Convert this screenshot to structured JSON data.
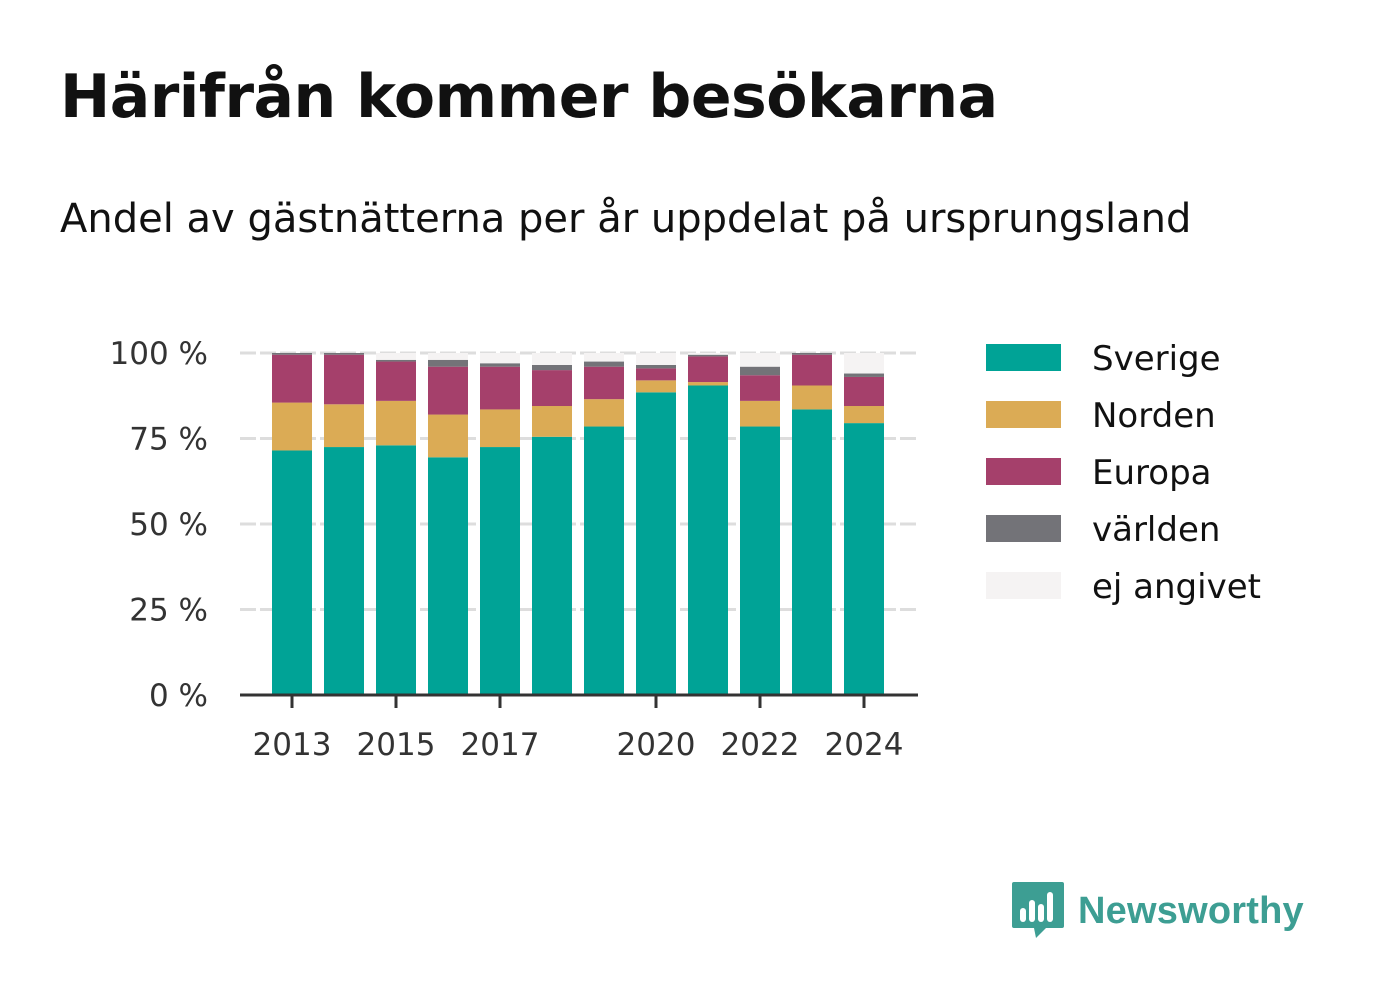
{
  "title": "Härifrån kommer besökarna",
  "subtitle": "Andel av gästnätterna per år uppdelat på ursprungsland",
  "brand": {
    "name": "Newsworthy",
    "logo_icon": "bar-chart-speech-bubble-icon",
    "color": "#3d9e93"
  },
  "chart_data": {
    "type": "bar",
    "stacked": true,
    "categories": [
      "2013",
      "2014",
      "2015",
      "2016",
      "2017",
      "2018",
      "2019",
      "2020",
      "2021",
      "2022",
      "2023",
      "2024"
    ],
    "x_tick_labels": [
      "2013",
      "",
      "2015",
      "",
      "2017",
      "",
      "",
      "2020",
      "",
      "2022",
      "",
      "2024"
    ],
    "y_ticks": [
      0,
      25,
      50,
      75,
      100
    ],
    "y_tick_labels": [
      "0 %",
      "25 %",
      "50 %",
      "75 %",
      "100 %"
    ],
    "ylim": [
      0,
      100
    ],
    "grid": true,
    "legend_position": "right",
    "series": [
      {
        "name": "Sverige",
        "color": "#00a396",
        "values": [
          71.5,
          72.5,
          73.0,
          69.5,
          72.5,
          75.5,
          78.5,
          88.5,
          90.5,
          78.5,
          83.5,
          79.5
        ]
      },
      {
        "name": "Norden",
        "color": "#dbab55",
        "values": [
          14.0,
          12.5,
          13.0,
          12.5,
          11.0,
          9.0,
          8.0,
          3.5,
          1.0,
          7.5,
          7.0,
          5.0
        ]
      },
      {
        "name": "Europa",
        "color": "#a5406b",
        "values": [
          14.0,
          14.5,
          11.5,
          14.0,
          12.5,
          10.5,
          9.5,
          3.5,
          7.5,
          7.5,
          9.0,
          8.5
        ]
      },
      {
        "name": "världen",
        "color": "#737378",
        "values": [
          0.5,
          0.5,
          0.5,
          2.0,
          1.0,
          1.5,
          1.5,
          1.0,
          0.5,
          2.5,
          0.5,
          1.0
        ]
      },
      {
        "name": "ej angivet",
        "color": "#f5f3f3",
        "values": [
          0.0,
          0.0,
          2.0,
          2.0,
          3.0,
          3.5,
          2.5,
          3.5,
          0.5,
          4.0,
          0.0,
          6.0
        ]
      }
    ]
  }
}
